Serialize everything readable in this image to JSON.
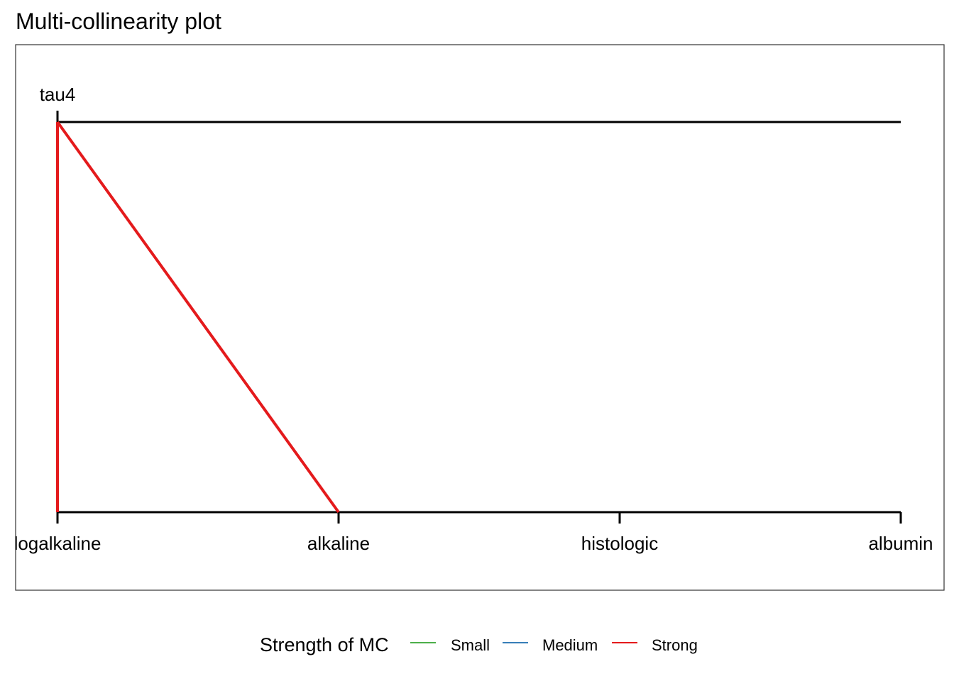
{
  "chart_data": {
    "type": "line",
    "title": "Multi-collinearity plot",
    "top_variables": [
      "tau4"
    ],
    "bottom_variables": [
      "logalkaline",
      "alkaline",
      "histologic",
      "albumin"
    ],
    "links": [
      {
        "from": "tau4",
        "to": "logalkaline",
        "strength": "Strong"
      },
      {
        "from": "tau4",
        "to": "alkaline",
        "strength": "Strong"
      }
    ],
    "legend": {
      "title": "Strength of MC",
      "placement": "bottom",
      "items": [
        {
          "label": "Small",
          "color": "#4daf4a"
        },
        {
          "label": "Medium",
          "color": "#377eb8"
        },
        {
          "label": "Strong",
          "color": "#e41a1c"
        }
      ]
    }
  }
}
